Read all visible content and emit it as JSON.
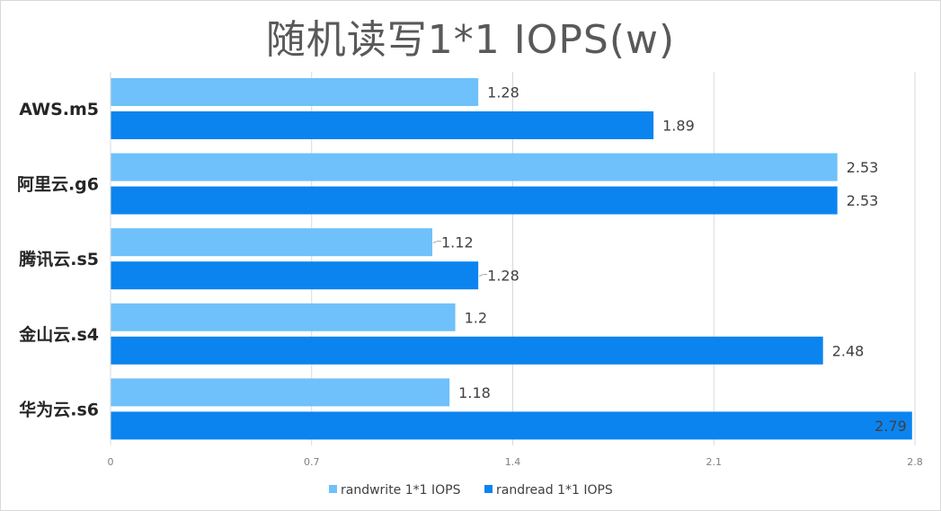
{
  "chart_data": {
    "type": "bar",
    "orientation": "horizontal",
    "title": "随机读写1*1 IOPS(w)",
    "categories": [
      "AWS.m5",
      "阿里云.g6",
      "腾讯云.s5",
      "金山云.s4",
      "华为云.s6"
    ],
    "series": [
      {
        "name": "randwrite 1*1 IOPS",
        "color": "#6ec1fa",
        "values": [
          1.28,
          2.53,
          1.12,
          1.2,
          1.18
        ],
        "labels": [
          "1.28",
          "2.53",
          "1.12",
          "1.2",
          "1.18"
        ]
      },
      {
        "name": "randread 1*1 IOPS",
        "color": "#0b84f0",
        "values": [
          1.89,
          2.53,
          1.28,
          2.48,
          2.79
        ],
        "labels": [
          "1.89",
          "2.53",
          "1.28",
          "2.48",
          "2.79"
        ]
      }
    ],
    "xlim": [
      0,
      2.8
    ],
    "xticks": [
      "0",
      "0.7",
      "1.4",
      "2.1",
      "2.8"
    ],
    "xlabel": "",
    "ylabel": "",
    "grid": true,
    "legend": "bottom"
  }
}
